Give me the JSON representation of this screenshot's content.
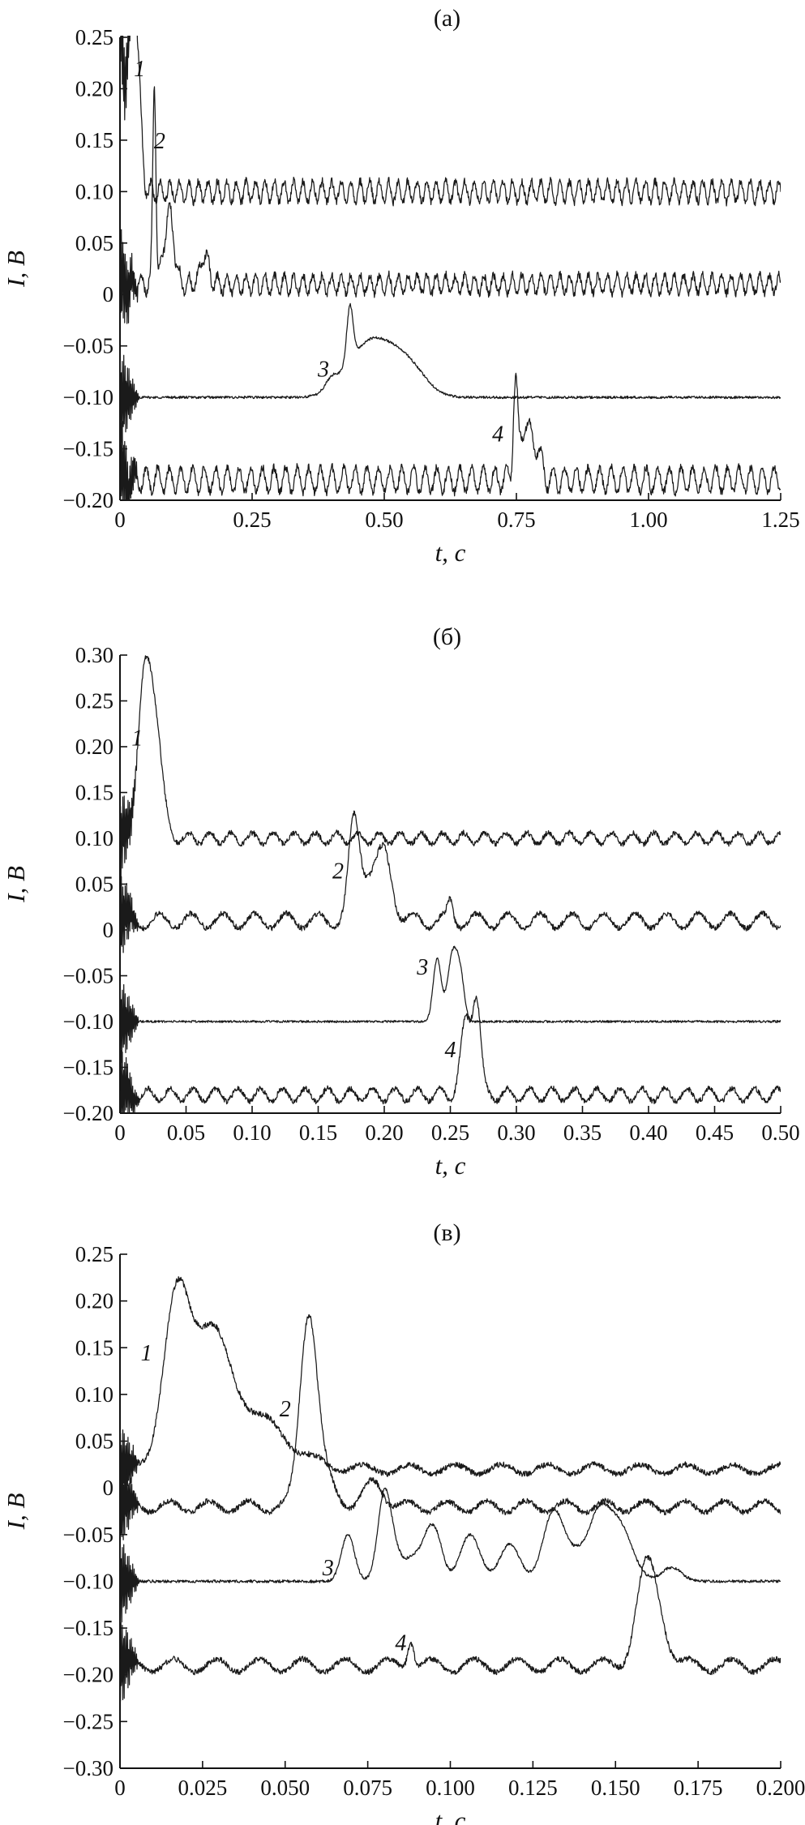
{
  "chart_data": [
    {
      "type": "line",
      "title": "(a)",
      "xlabel": "t, с",
      "ylabel": "I, В",
      "xlim": [
        0,
        1.25
      ],
      "ylim": [
        -0.2,
        0.25
      ],
      "xticks": [
        0,
        0.25,
        0.5,
        0.75,
        1.0,
        1.25
      ],
      "xtick_labels": [
        "0",
        "0.25",
        "0.50",
        "0.75",
        "1.00",
        "1.25"
      ],
      "yticks": [
        -0.2,
        -0.15,
        -0.1,
        -0.05,
        0,
        0.05,
        0.1,
        0.15,
        0.2,
        0.25
      ],
      "ytick_labels": [
        "−0.20",
        "−0.15",
        "−0.10",
        "−0.05",
        "0",
        "0.05",
        "0.10",
        "0.15",
        "0.20",
        "0.25"
      ],
      "grid": false,
      "series": [
        {
          "name": "1",
          "label_at": [
            0.037,
            0.22
          ],
          "baseline": 0.1,
          "osc_amp": 0.01,
          "osc_period": 0.018,
          "noise": 0.004,
          "events": [
            [
              0.0,
              0.15,
              0.004
            ],
            [
              0.018,
              0.15,
              0.009
            ],
            [
              0.032,
              0.12,
              0.007
            ]
          ]
        },
        {
          "name": "2",
          "label_at": [
            0.075,
            0.15
          ],
          "baseline": 0.01,
          "osc_amp": 0.009,
          "osc_period": 0.018,
          "noise": 0.004,
          "events": [
            [
              0.065,
              0.195,
              0.003
            ],
            [
              0.093,
              0.07,
              0.009
            ],
            [
              0.16,
              0.03,
              0.007
            ]
          ]
        },
        {
          "name": "3",
          "label_at": [
            0.385,
            -0.072
          ],
          "baseline": -0.1,
          "osc_amp": 0.0,
          "osc_period": 0.05,
          "noise": 0.0012,
          "events": [
            [
              0.4,
              0.01,
              0.012
            ],
            [
              0.435,
              0.055,
              0.006
            ],
            [
              0.47,
              0.05,
              0.04
            ],
            [
              0.53,
              0.025,
              0.035
            ],
            [
              0.56,
              0.01,
              0.03
            ]
          ]
        },
        {
          "name": "4",
          "label_at": [
            0.715,
            -0.135
          ],
          "baseline": -0.18,
          "osc_amp": 0.012,
          "osc_period": 0.022,
          "noise": 0.004,
          "events": [
            [
              0.748,
              0.095,
              0.004
            ],
            [
              0.765,
              0.05,
              0.008
            ],
            [
              0.785,
              0.035,
              0.01
            ]
          ]
        }
      ]
    },
    {
      "type": "line",
      "title": "(б)",
      "xlabel": "t, с",
      "ylabel": "I, В",
      "xlim": [
        0,
        0.5
      ],
      "ylim": [
        -0.2,
        0.3
      ],
      "xticks": [
        0,
        0.05,
        0.1,
        0.15,
        0.2,
        0.25,
        0.3,
        0.35,
        0.4,
        0.45,
        0.5
      ],
      "xtick_labels": [
        "0",
        "0.05",
        "0.10",
        "0.15",
        "0.20",
        "0.25",
        "0.30",
        "0.35",
        "0.40",
        "0.45",
        "0.50"
      ],
      "yticks": [
        -0.2,
        -0.15,
        -0.1,
        -0.05,
        0,
        0.05,
        0.1,
        0.15,
        0.2,
        0.25,
        0.3
      ],
      "ytick_labels": [
        "−0.20",
        "−0.15",
        "−0.10",
        "−0.05",
        "0",
        "0.05",
        "0.10",
        "0.15",
        "0.20",
        "0.25",
        "0.30"
      ],
      "grid": false,
      "series": [
        {
          "name": "1",
          "label_at": [
            0.013,
            0.21
          ],
          "baseline": 0.1,
          "osc_amp": 0.006,
          "osc_period": 0.016,
          "noise": 0.003,
          "events": [
            [
              0.018,
              0.16,
              0.005
            ],
            [
              0.027,
              0.12,
              0.005
            ]
          ]
        },
        {
          "name": "2",
          "label_at": [
            0.165,
            0.065
          ],
          "baseline": 0.01,
          "osc_amp": 0.008,
          "osc_period": 0.024,
          "noise": 0.003,
          "events": [
            [
              0.177,
              0.1,
              0.004
            ],
            [
              0.187,
              0.045,
              0.006
            ],
            [
              0.2,
              0.07,
              0.006
            ],
            [
              0.25,
              0.02,
              0.002
            ]
          ]
        },
        {
          "name": "3",
          "label_at": [
            0.229,
            -0.04
          ],
          "baseline": -0.1,
          "osc_amp": 0.0,
          "osc_period": 0.05,
          "noise": 0.0012,
          "events": [
            [
              0.24,
              0.068,
              0.003
            ],
            [
              0.252,
              0.075,
              0.004
            ],
            [
              0.258,
              0.035,
              0.003
            ]
          ]
        },
        {
          "name": "4",
          "label_at": [
            0.25,
            -0.13
          ],
          "baseline": -0.18,
          "osc_amp": 0.007,
          "osc_period": 0.017,
          "noise": 0.003,
          "events": [
            [
              0.262,
              0.08,
              0.004
            ],
            [
              0.27,
              0.1,
              0.003
            ]
          ]
        }
      ]
    },
    {
      "type": "line",
      "title": "(в)",
      "xlabel": "t, с",
      "ylabel": "I, В",
      "xlim": [
        0,
        0.2
      ],
      "ylim": [
        -0.3,
        0.25
      ],
      "xticks": [
        0,
        0.025,
        0.05,
        0.075,
        0.1,
        0.125,
        0.15,
        0.175,
        0.2
      ],
      "xtick_labels": [
        "0",
        "0.025",
        "0.050",
        "0.075",
        "0.100",
        "0.125",
        "0.150",
        "0.175",
        "0.200"
      ],
      "yticks": [
        -0.3,
        -0.25,
        -0.2,
        -0.15,
        -0.1,
        -0.05,
        0,
        0.05,
        0.1,
        0.15,
        0.2,
        0.25
      ],
      "ytick_labels": [
        "−0.30",
        "−0.25",
        "−0.20",
        "−0.15",
        "−0.10",
        "−0.05",
        "0",
        "0.05",
        "0.10",
        "0.15",
        "0.20",
        "0.25"
      ],
      "grid": false,
      "series": [
        {
          "name": "1",
          "label_at": [
            0.008,
            0.145
          ],
          "baseline": 0.02,
          "osc_amp": 0.005,
          "osc_period": 0.014,
          "noise": 0.003,
          "events": [
            [
              0.017,
              0.17,
              0.004
            ],
            [
              0.027,
              0.11,
              0.005
            ],
            [
              0.035,
              0.05,
              0.01
            ],
            [
              0.045,
              0.02,
              0.01
            ]
          ]
        },
        {
          "name": "2",
          "label_at": [
            0.05,
            0.085
          ],
          "baseline": -0.02,
          "osc_amp": 0.006,
          "osc_period": 0.012,
          "noise": 0.003,
          "events": [
            [
              0.057,
              0.18,
              0.0025
            ],
            [
              0.06,
              0.04,
              0.004
            ],
            [
              0.077,
              0.025,
              0.003
            ]
          ]
        },
        {
          "name": "3",
          "label_at": [
            0.063,
            -0.085
          ],
          "baseline": -0.1,
          "osc_amp": 0.0,
          "osc_period": 0.05,
          "noise": 0.0015,
          "events": [
            [
              0.069,
              0.05,
              0.002
            ],
            [
              0.08,
              0.08,
              0.002
            ],
            [
              0.083,
              0.03,
              0.003
            ],
            [
              0.089,
              0.02,
              0.002
            ],
            [
              0.093,
              0.04,
              0.002
            ],
            [
              0.096,
              0.04,
              0.002
            ],
            [
              0.106,
              0.05,
              0.003
            ],
            [
              0.118,
              0.04,
              0.003
            ],
            [
              0.131,
              0.065,
              0.003
            ],
            [
              0.138,
              0.03,
              0.005
            ],
            [
              0.145,
              0.05,
              0.003
            ],
            [
              0.151,
              0.06,
              0.004
            ],
            [
              0.167,
              0.015,
              0.003
            ]
          ]
        },
        {
          "name": "4",
          "label_at": [
            0.085,
            -0.165
          ],
          "baseline": -0.19,
          "osc_amp": 0.007,
          "osc_period": 0.013,
          "noise": 0.003,
          "events": [
            [
              0.088,
              0.03,
              0.001
            ],
            [
              0.159,
              0.09,
              0.003
            ],
            [
              0.163,
              0.04,
              0.003
            ]
          ]
        }
      ]
    }
  ]
}
